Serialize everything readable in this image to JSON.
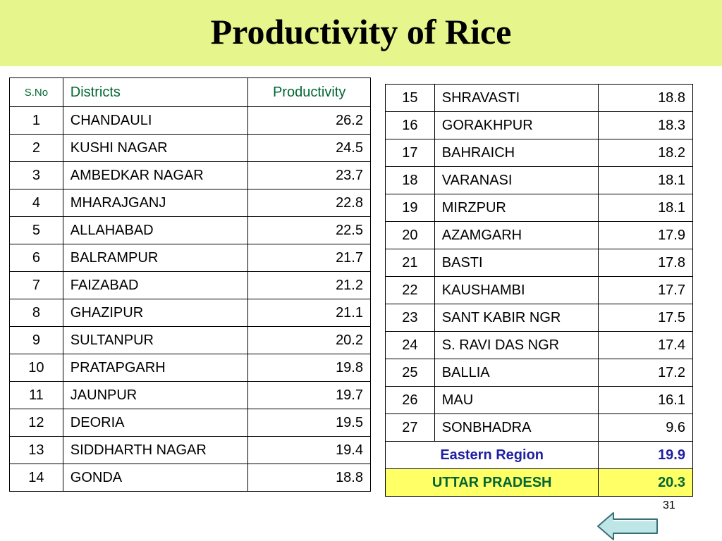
{
  "title": "Productivity of Rice",
  "table_left": {
    "headers": {
      "sno": "S.No",
      "district": "Districts",
      "productivity": "Productivity"
    },
    "rows": [
      {
        "sno": "1",
        "district": "CHANDAULI",
        "value": "26.2"
      },
      {
        "sno": "2",
        "district": "KUSHI NAGAR",
        "value": "24.5"
      },
      {
        "sno": "3",
        "district": "AMBEDKAR NAGAR",
        "value": "23.7"
      },
      {
        "sno": "4",
        "district": "MHARAJGANJ",
        "value": "22.8"
      },
      {
        "sno": "5",
        "district": "ALLAHABAD",
        "value": "22.5"
      },
      {
        "sno": "6",
        "district": "BALRAMPUR",
        "value": "21.7"
      },
      {
        "sno": "7",
        "district": "FAIZABAD",
        "value": "21.2"
      },
      {
        "sno": "8",
        "district": "GHAZIPUR",
        "value": "21.1"
      },
      {
        "sno": "9",
        "district": "SULTANPUR",
        "value": "20.2"
      },
      {
        "sno": "10",
        "district": "PRATAPGARH",
        "value": "19.8"
      },
      {
        "sno": "11",
        "district": "JAUNPUR",
        "value": "19.7"
      },
      {
        "sno": "12",
        "district": "DEORIA",
        "value": "19.5"
      },
      {
        "sno": "13",
        "district": "SIDDHARTH NAGAR",
        "value": "19.4"
      },
      {
        "sno": "14",
        "district": "GONDA",
        "value": "18.8"
      }
    ]
  },
  "table_right": {
    "rows": [
      {
        "sno": "15",
        "district": "SHRAVASTI",
        "value": "18.8"
      },
      {
        "sno": "16",
        "district": "GORAKHPUR",
        "value": "18.3"
      },
      {
        "sno": "17",
        "district": "BAHRAICH",
        "value": "18.2"
      },
      {
        "sno": "18",
        "district": "VARANASI",
        "value": "18.1"
      },
      {
        "sno": "19",
        "district": "MIRZPUR",
        "value": "18.1"
      },
      {
        "sno": "20",
        "district": "AZAMGARH",
        "value": "17.9"
      },
      {
        "sno": "21",
        "district": "BASTI",
        "value": "17.8"
      },
      {
        "sno": "22",
        "district": "KAUSHAMBI",
        "value": "17.7"
      },
      {
        "sno": "23",
        "district": "SANT KABIR NGR",
        "value": "17.5"
      },
      {
        "sno": "24",
        "district": "S. RAVI DAS NGR",
        "value": "17.4"
      },
      {
        "sno": "25",
        "district": "BALLIA",
        "value": "17.2"
      },
      {
        "sno": "26",
        "district": "MAU",
        "value": "16.1"
      },
      {
        "sno": "27",
        "district": "SONBHADRA",
        "value": "9.6"
      }
    ],
    "summary": [
      {
        "label": "Eastern Region",
        "value": "19.9"
      },
      {
        "label": "UTTAR PRADESH",
        "value": "20.3"
      }
    ]
  },
  "page_number": "31",
  "colors": {
    "title_bar": "#e6f58c",
    "header_text": "#006633",
    "region_text": "#1f1fa0",
    "state_highlight": "#ffff66",
    "back_arrow_fill": "#bfe6e6"
  },
  "icons": {
    "back": "left-arrow-icon"
  }
}
